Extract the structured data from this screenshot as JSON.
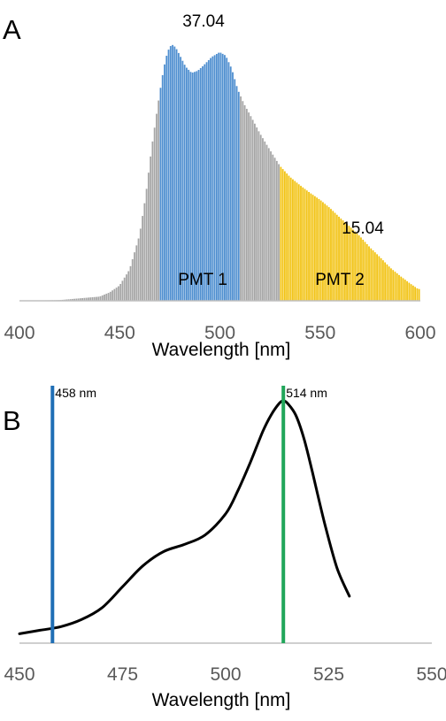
{
  "chart_data": [
    {
      "panel_label": "A",
      "type": "bar",
      "xlabel": "Wavelength [nm]",
      "ylabel": "",
      "xlim": [
        400,
        600
      ],
      "xticks": [
        "400",
        "450",
        "500",
        "550",
        "600"
      ],
      "bar_step": 1,
      "profile_x": [
        400,
        420,
        440,
        445,
        450,
        455,
        460,
        463,
        466,
        469,
        472,
        474,
        476,
        478,
        480,
        483,
        486,
        489,
        492,
        496,
        500,
        503,
        506,
        509,
        512,
        516,
        520,
        525,
        530,
        535,
        540,
        545,
        550,
        555,
        560,
        565,
        570,
        575,
        580,
        585,
        590,
        595,
        599
      ],
      "profile_y": [
        0,
        0.1,
        0.6,
        1.2,
        2.2,
        4.5,
        9.5,
        15,
        22,
        28,
        33.5,
        36,
        37.04,
        36.6,
        35.5,
        33.8,
        32.9,
        33.2,
        34,
        35.2,
        35.9,
        35.4,
        33.5,
        30.5,
        28.5,
        26.4,
        24.2,
        21.8,
        19.5,
        17.9,
        16.7,
        15.6,
        14.6,
        13.4,
        12,
        10.7,
        9.3,
        7.7,
        6.3,
        4.8,
        3.6,
        2.5,
        1.7
      ],
      "regions": [
        {
          "name": "PMT 1",
          "from": 470,
          "to": 510,
          "color": "#4f8fd0",
          "value_label": "37.04"
        },
        {
          "name": "PMT 2",
          "from": 530,
          "to": 600,
          "color": "#f2c314",
          "value_label": "15.04"
        }
      ],
      "other_color": "#a6a6a6"
    },
    {
      "panel_label": "B",
      "type": "line",
      "xlabel": "Wavelength [nm]",
      "ylabel": "",
      "xlim": [
        450,
        550
      ],
      "xticks": [
        "450",
        "475",
        "500",
        "525",
        "550"
      ],
      "ylim": [
        0,
        1.08
      ],
      "series": [
        {
          "color": "#000000",
          "x": [
            450,
            455,
            460,
            465,
            470,
            475,
            480,
            485,
            490,
            495,
            500,
            503,
            506,
            509,
            511,
            513,
            514,
            515,
            517,
            519,
            521,
            524,
            527,
            530
          ],
          "y": [
            0.04,
            0.055,
            0.07,
            0.1,
            0.15,
            0.24,
            0.33,
            0.39,
            0.42,
            0.46,
            0.55,
            0.65,
            0.77,
            0.9,
            0.97,
            1.02,
            1.03,
            1.02,
            0.97,
            0.87,
            0.73,
            0.51,
            0.32,
            0.2
          ]
        }
      ],
      "vlines": [
        {
          "x": 458,
          "label": "458 nm",
          "color": "#1f6eb5"
        },
        {
          "x": 514,
          "label": "514 nm",
          "color": "#21a65a"
        }
      ]
    }
  ]
}
